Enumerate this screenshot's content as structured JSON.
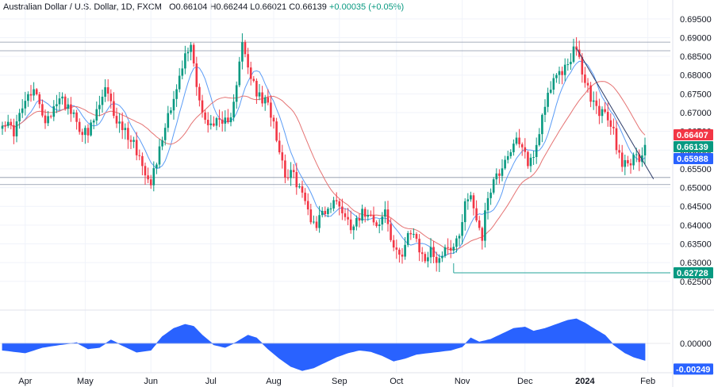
{
  "header": {
    "symbol": "Australian Dollar / U.S. Dollar, 1D, FXCM",
    "open_label": "O",
    "open": "0.66104",
    "high_label": "H",
    "high": "0.66244",
    "low_label": "L",
    "low": "0.66021",
    "close_label": "C",
    "close": "0.66139",
    "change": "+0.00035 (+0.05%)"
  },
  "chart_data": [
    {
      "type": "candlestick",
      "title": "Australian Dollar / U.S. Dollar, 1D, FXCM",
      "ylim": [
        0.6222,
        0.6975
      ],
      "y_ticks": [
        "0.69500",
        "0.69000",
        "0.68500",
        "0.68000",
        "0.67500",
        "0.67000",
        "0.66500",
        "0.66000",
        "0.65500",
        "0.65000",
        "0.64500",
        "0.64000",
        "0.63500",
        "0.63000",
        "0.62500"
      ],
      "x_ticks": [
        {
          "label": "Apr",
          "bar": 8
        },
        {
          "label": "May",
          "bar": 29
        },
        {
          "label": "Jun",
          "bar": 52
        },
        {
          "label": "Jul",
          "bar": 73
        },
        {
          "label": "Aug",
          "bar": 95
        },
        {
          "label": "Sep",
          "bar": 118
        },
        {
          "label": "Oct",
          "bar": 138
        },
        {
          "label": "Nov",
          "bar": 161
        },
        {
          "label": "Dec",
          "bar": 183
        },
        {
          "label": "2024",
          "bar": 204,
          "bold": true
        },
        {
          "label": "Feb",
          "bar": 226
        }
      ],
      "price_waypoints": [
        [
          0,
          0.668
        ],
        [
          4,
          0.665
        ],
        [
          8,
          0.673
        ],
        [
          12,
          0.676
        ],
        [
          14,
          0.668
        ],
        [
          17,
          0.67
        ],
        [
          20,
          0.675
        ],
        [
          24,
          0.67
        ],
        [
          27,
          0.666
        ],
        [
          30,
          0.664
        ],
        [
          33,
          0.67
        ],
        [
          36,
          0.676
        ],
        [
          38,
          0.672
        ],
        [
          40,
          0.668
        ],
        [
          43,
          0.665
        ],
        [
          46,
          0.662
        ],
        [
          49,
          0.656
        ],
        [
          52,
          0.652
        ],
        [
          55,
          0.66
        ],
        [
          58,
          0.67
        ],
        [
          61,
          0.676
        ],
        [
          64,
          0.685
        ],
        [
          66,
          0.688
        ],
        [
          68,
          0.678
        ],
        [
          70,
          0.67
        ],
        [
          72,
          0.666
        ],
        [
          74,
          0.668
        ],
        [
          77,
          0.666
        ],
        [
          80,
          0.67
        ],
        [
          82,
          0.678
        ],
        [
          84,
          0.688
        ],
        [
          86,
          0.682
        ],
        [
          88,
          0.677
        ],
        [
          90,
          0.674
        ],
        [
          93,
          0.672
        ],
        [
          95,
          0.668
        ],
        [
          97,
          0.66
        ],
        [
          99,
          0.654
        ],
        [
          102,
          0.653
        ],
        [
          104,
          0.65
        ],
        [
          106,
          0.646
        ],
        [
          108,
          0.642
        ],
        [
          110,
          0.64
        ],
        [
          112,
          0.644
        ],
        [
          114,
          0.644
        ],
        [
          116,
          0.646
        ],
        [
          118,
          0.646
        ],
        [
          120,
          0.642
        ],
        [
          122,
          0.64
        ],
        [
          124,
          0.642
        ],
        [
          126,
          0.643
        ],
        [
          128,
          0.644
        ],
        [
          130,
          0.642
        ],
        [
          132,
          0.64
        ],
        [
          134,
          0.644
        ],
        [
          136,
          0.636
        ],
        [
          138,
          0.632
        ],
        [
          140,
          0.633
        ],
        [
          142,
          0.638
        ],
        [
          144,
          0.637
        ],
        [
          146,
          0.633
        ],
        [
          148,
          0.631
        ],
        [
          150,
          0.633
        ],
        [
          152,
          0.631
        ],
        [
          154,
          0.632
        ],
        [
          156,
          0.635
        ],
        [
          158,
          0.634
        ],
        [
          160,
          0.638
        ],
        [
          162,
          0.646
        ],
        [
          164,
          0.648
        ],
        [
          166,
          0.642
        ],
        [
          168,
          0.637
        ],
        [
          170,
          0.648
        ],
        [
          172,
          0.652
        ],
        [
          174,
          0.654
        ],
        [
          176,
          0.658
        ],
        [
          178,
          0.66
        ],
        [
          180,
          0.662
        ],
        [
          182,
          0.66
        ],
        [
          184,
          0.657
        ],
        [
          186,
          0.658
        ],
        [
          188,
          0.665
        ],
        [
          190,
          0.673
        ],
        [
          192,
          0.677
        ],
        [
          194,
          0.679
        ],
        [
          196,
          0.681
        ],
        [
          198,
          0.683
        ],
        [
          200,
          0.687
        ],
        [
          202,
          0.684
        ],
        [
          204,
          0.678
        ],
        [
          206,
          0.674
        ],
        [
          208,
          0.671
        ],
        [
          210,
          0.67
        ],
        [
          212,
          0.668
        ],
        [
          214,
          0.665
        ],
        [
          215,
          0.661
        ],
        [
          217,
          0.657
        ],
        [
          219,
          0.657
        ],
        [
          221,
          0.6575
        ],
        [
          223,
          0.658
        ],
        [
          225,
          0.6614
        ]
      ],
      "levels": [
        {
          "price": 0.6888
        },
        {
          "price": 0.6865
        },
        {
          "price": 0.6527
        },
        {
          "price": 0.6508
        }
      ],
      "trendline": {
        "from": [
          201,
          0.6872
        ],
        "to": [
          228,
          0.6523
        ]
      },
      "support_line": {
        "from_bar": 158,
        "price": 0.62728
      },
      "price_labels": [
        {
          "text": "0.66407",
          "color": "#f23645"
        },
        {
          "text": "0.66139",
          "color": "#089981"
        },
        {
          "text": "0.65988",
          "color": "#2962ff"
        },
        {
          "text": "0.62728",
          "color": "#089981"
        }
      ],
      "colors": {
        "up": "#089981",
        "down": "#f23645",
        "fast_ma": "#5b9cf6",
        "slow_ma": "#e57373",
        "level": "#8a94a6",
        "trend": "#2b3a67",
        "oscillator": "#2962ff"
      }
    },
    {
      "type": "area",
      "ylim": [
        -0.0035,
        0.0035
      ],
      "y_ticks": [
        "0.00000"
      ],
      "last_value": "-0.00249",
      "color": "#2962ff",
      "osc_waypoints": [
        [
          0,
          -0.001
        ],
        [
          8,
          -0.0014
        ],
        [
          14,
          -0.0006
        ],
        [
          20,
          -0.0002
        ],
        [
          26,
          0.0001
        ],
        [
          30,
          -0.0008
        ],
        [
          34,
          -0.0006
        ],
        [
          38,
          0.0005
        ],
        [
          42,
          -0.0003
        ],
        [
          47,
          -0.0013
        ],
        [
          52,
          -0.001
        ],
        [
          56,
          0.001
        ],
        [
          60,
          0.0022
        ],
        [
          64,
          0.0028
        ],
        [
          67,
          0.0025
        ],
        [
          70,
          0.0012
        ],
        [
          74,
          -0.0002
        ],
        [
          78,
          -0.0006
        ],
        [
          82,
          0.0002
        ],
        [
          86,
          0.0012
        ],
        [
          89,
          0.0008
        ],
        [
          93,
          -0.0008
        ],
        [
          97,
          -0.0022
        ],
        [
          101,
          -0.0034
        ],
        [
          105,
          -0.004
        ],
        [
          109,
          -0.0036
        ],
        [
          113,
          -0.0028
        ],
        [
          117,
          -0.002
        ],
        [
          121,
          -0.0014
        ],
        [
          125,
          -0.001
        ],
        [
          129,
          -0.0012
        ],
        [
          133,
          -0.0018
        ],
        [
          137,
          -0.0026
        ],
        [
          141,
          -0.0022
        ],
        [
          145,
          -0.0016
        ],
        [
          149,
          -0.0014
        ],
        [
          153,
          -0.0012
        ],
        [
          157,
          -0.001
        ],
        [
          161,
          -0.0005
        ],
        [
          164,
          0.0008
        ],
        [
          167,
          0.0002
        ],
        [
          171,
          0.0006
        ],
        [
          175,
          0.0014
        ],
        [
          179,
          0.0022
        ],
        [
          183,
          0.0024
        ],
        [
          186,
          0.0018
        ],
        [
          190,
          0.0022
        ],
        [
          194,
          0.0028
        ],
        [
          198,
          0.0034
        ],
        [
          201,
          0.0036
        ],
        [
          204,
          0.003
        ],
        [
          207,
          0.0022
        ],
        [
          211,
          0.0012
        ],
        [
          214,
          -0.0002
        ],
        [
          218,
          -0.0014
        ],
        [
          221,
          -0.002
        ],
        [
          225,
          -0.0025
        ]
      ]
    }
  ]
}
